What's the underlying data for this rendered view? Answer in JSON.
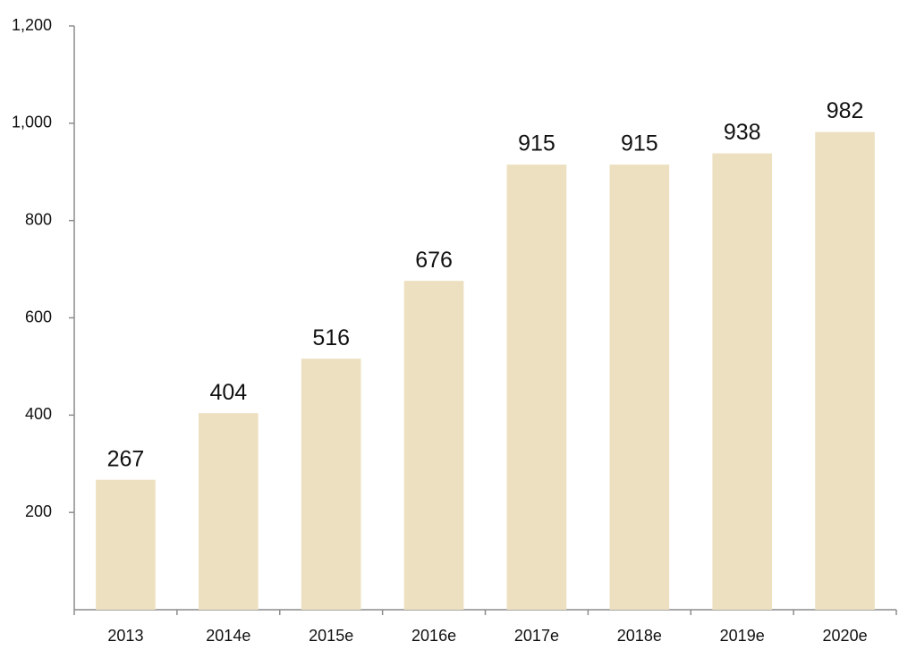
{
  "chart_data": {
    "type": "bar",
    "categories": [
      "2013",
      "2014e",
      "2015e",
      "2016e",
      "2017e",
      "2018e",
      "2019e",
      "2020e"
    ],
    "values": [
      267,
      404,
      516,
      676,
      915,
      915,
      938,
      982
    ],
    "color": "#ede0c0",
    "ylim": [
      0,
      1200
    ],
    "yticks": [
      200,
      400,
      600,
      800,
      {
        "value": 1000,
        "label": "1,000"
      },
      {
        "value": 1200,
        "label": "1,200"
      }
    ],
    "grid": false
  }
}
